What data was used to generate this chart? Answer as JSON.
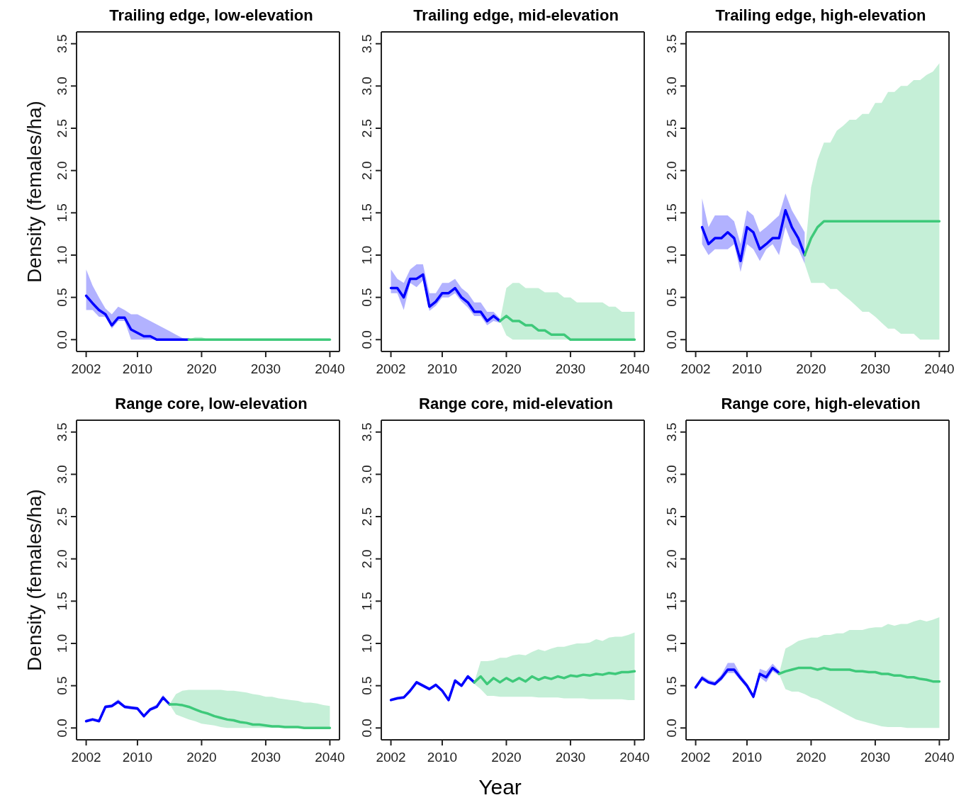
{
  "chart_data": [
    {
      "type": "line",
      "title": "Trailing edge, low-elevation",
      "ylabel": "Density (females/ha)",
      "xlim": [
        2000.5,
        2041.5
      ],
      "xticks": [
        2002,
        2010,
        2020,
        2030,
        2040
      ],
      "ylim": [
        -0.14,
        3.64
      ],
      "yticks": [
        {
          "value": 0,
          "label": "0.0"
        },
        0.5,
        {
          "value": 1,
          "label": "1.0"
        },
        1.5,
        {
          "value": 2,
          "label": "2.0"
        },
        2.5,
        {
          "value": 3,
          "label": "3.0"
        },
        3.5
      ],
      "series": [
        {
          "color": "#0000ff",
          "x": [
            2002,
            2003,
            2004,
            2005,
            2006,
            2007,
            2008,
            2009,
            2010,
            2011,
            2012,
            2013,
            2014,
            2015,
            2016,
            2017,
            2018
          ],
          "values": [
            0.52,
            0.43,
            0.35,
            0.3,
            0.17,
            0.26,
            0.26,
            0.12,
            0.08,
            0.04,
            0.04,
            0,
            0,
            0,
            0,
            0,
            0
          ],
          "lower": [
            0.35,
            0.35,
            0.27,
            0.27,
            0.13,
            0.22,
            0.22,
            0,
            0,
            0,
            0,
            0,
            0,
            0,
            0,
            0,
            0
          ],
          "upper": [
            0.83,
            0.64,
            0.5,
            0.37,
            0.3,
            0.39,
            0.35,
            0.3,
            0.3,
            0.26,
            0.22,
            0.18,
            0.14,
            0.1,
            0.06,
            0.02,
            0
          ]
        },
        {
          "color": "#3ec97a",
          "x": [
            2018,
            2019,
            2020,
            2021,
            2022,
            2023,
            2024,
            2025,
            2026,
            2027,
            2028,
            2029,
            2030,
            2031,
            2032,
            2033,
            2034,
            2035,
            2036,
            2037,
            2038,
            2039,
            2040
          ],
          "values": [
            0,
            0,
            0,
            0,
            0,
            0,
            0,
            0,
            0,
            0,
            0,
            0,
            0,
            0,
            0,
            0,
            0,
            0,
            0,
            0,
            0,
            0,
            0
          ],
          "lower": [
            0,
            0,
            0,
            0,
            0,
            0,
            0,
            0,
            0,
            0,
            0,
            0,
            0,
            0,
            0,
            0,
            0,
            0,
            0,
            0,
            0,
            0,
            0
          ],
          "upper": [
            0,
            0.03,
            0.03,
            0,
            0,
            0,
            0,
            0,
            0,
            0,
            0,
            0,
            0,
            0,
            0,
            0,
            0,
            0,
            0,
            0,
            0,
            0,
            0
          ]
        }
      ]
    },
    {
      "type": "line",
      "title": "Trailing edge, mid-elevation",
      "xlim": [
        2000.5,
        2041.5
      ],
      "xticks": [
        2002,
        2010,
        2020,
        2030,
        2040
      ],
      "ylim": [
        -0.14,
        3.64
      ],
      "yticks": [
        {
          "value": 0,
          "label": "0.0"
        },
        0.5,
        {
          "value": 1,
          "label": "1.0"
        },
        1.5,
        {
          "value": 2,
          "label": "2.0"
        },
        2.5,
        {
          "value": 3,
          "label": "3.0"
        },
        3.5
      ],
      "series": [
        {
          "color": "#0000ff",
          "x": [
            2002,
            2003,
            2004,
            2005,
            2006,
            2007,
            2008,
            2009,
            2010,
            2011,
            2012,
            2013,
            2014,
            2015,
            2016,
            2017,
            2018,
            2019
          ],
          "values": [
            0.61,
            0.61,
            0.5,
            0.72,
            0.72,
            0.77,
            0.39,
            0.45,
            0.55,
            0.55,
            0.61,
            0.5,
            0.44,
            0.33,
            0.33,
            0.22,
            0.28,
            0.22
          ],
          "lower": [
            0.55,
            0.55,
            0.35,
            0.67,
            0.62,
            0.7,
            0.34,
            0.4,
            0.5,
            0.5,
            0.55,
            0.45,
            0.38,
            0.28,
            0.28,
            0.17,
            0.22,
            0.2
          ],
          "upper": [
            0.83,
            0.72,
            0.67,
            0.83,
            0.89,
            0.89,
            0.55,
            0.55,
            0.67,
            0.67,
            0.72,
            0.61,
            0.55,
            0.44,
            0.44,
            0.33,
            0.33,
            0.25
          ]
        },
        {
          "color": "#3ec97a",
          "x": [
            2019,
            2020,
            2021,
            2022,
            2023,
            2024,
            2025,
            2026,
            2027,
            2028,
            2029,
            2030,
            2031,
            2032,
            2033,
            2034,
            2035,
            2036,
            2037,
            2038,
            2039,
            2040
          ],
          "values": [
            0.22,
            0.28,
            0.22,
            0.22,
            0.17,
            0.17,
            0.11,
            0.11,
            0.06,
            0.06,
            0.06,
            0,
            0,
            0,
            0,
            0,
            0,
            0,
            0,
            0,
            0,
            0
          ],
          "lower": [
            0.22,
            0.05,
            0,
            0,
            0,
            0,
            0,
            0,
            0,
            0,
            0,
            0,
            0,
            0,
            0,
            0,
            0,
            0,
            0,
            0,
            0,
            0
          ],
          "upper": [
            0.22,
            0.61,
            0.67,
            0.67,
            0.61,
            0.61,
            0.61,
            0.56,
            0.56,
            0.56,
            0.5,
            0.5,
            0.44,
            0.44,
            0.44,
            0.44,
            0.44,
            0.39,
            0.39,
            0.33,
            0.33,
            0.33
          ]
        }
      ]
    },
    {
      "type": "line",
      "title": "Trailing edge, high-elevation",
      "xlim": [
        2000.5,
        2041.5
      ],
      "xticks": [
        2002,
        2010,
        2020,
        2030,
        2040
      ],
      "ylim": [
        -0.14,
        3.64
      ],
      "yticks": [
        {
          "value": 0,
          "label": "0.0"
        },
        0.5,
        {
          "value": 1,
          "label": "1.0"
        },
        1.5,
        {
          "value": 2,
          "label": "2.0"
        },
        2.5,
        {
          "value": 3,
          "label": "3.0"
        },
        3.5
      ],
      "series": [
        {
          "color": "#0000ff",
          "x": [
            2003,
            2004,
            2005,
            2006,
            2007,
            2008,
            2009,
            2010,
            2011,
            2012,
            2013,
            2014,
            2015,
            2016,
            2017,
            2018,
            2019
          ],
          "values": [
            1.33,
            1.13,
            1.2,
            1.2,
            1.27,
            1.2,
            0.93,
            1.33,
            1.27,
            1.07,
            1.13,
            1.2,
            1.2,
            1.53,
            1.33,
            1.2,
            1
          ],
          "lower": [
            1.13,
            1,
            1.07,
            1.07,
            1.07,
            1.13,
            0.8,
            1.13,
            1.07,
            0.93,
            1.07,
            1.13,
            1,
            1.33,
            1.13,
            1.07,
            0.9
          ],
          "upper": [
            1.67,
            1.33,
            1.47,
            1.47,
            1.47,
            1.4,
            1.13,
            1.53,
            1.47,
            1.27,
            1.33,
            1.4,
            1.47,
            1.73,
            1.53,
            1.4,
            1.27
          ]
        },
        {
          "color": "#3ec97a",
          "x": [
            2019,
            2020,
            2021,
            2022,
            2023,
            2024,
            2025,
            2026,
            2027,
            2028,
            2029,
            2030,
            2031,
            2032,
            2033,
            2034,
            2035,
            2036,
            2037,
            2038,
            2039,
            2040
          ],
          "values": [
            1,
            1.2,
            1.33,
            1.4,
            1.4,
            1.4,
            1.4,
            1.4,
            1.4,
            1.4,
            1.4,
            1.4,
            1.4,
            1.4,
            1.4,
            1.4,
            1.4,
            1.4,
            1.4,
            1.4,
            1.4,
            1.4
          ],
          "lower": [
            0.9,
            0.67,
            0.67,
            0.67,
            0.6,
            0.6,
            0.53,
            0.47,
            0.4,
            0.33,
            0.33,
            0.27,
            0.2,
            0.13,
            0.13,
            0.07,
            0.07,
            0.07,
            0,
            0,
            0,
            0
          ],
          "upper": [
            1,
            1.8,
            2.13,
            2.33,
            2.33,
            2.47,
            2.53,
            2.6,
            2.6,
            2.67,
            2.67,
            2.8,
            2.8,
            2.93,
            2.93,
            3,
            3,
            3.07,
            3.07,
            3.13,
            3.17,
            3.27
          ]
        }
      ]
    },
    {
      "type": "line",
      "title": "Range core, low-elevation",
      "ylabel": "Density (females/ha)",
      "xlim": [
        2000.5,
        2041.5
      ],
      "xticks": [
        2002,
        2010,
        2020,
        2030,
        2040
      ],
      "ylim": [
        -0.14,
        3.64
      ],
      "yticks": [
        {
          "value": 0,
          "label": "0.0"
        },
        0.5,
        {
          "value": 1,
          "label": "1.0"
        },
        1.5,
        {
          "value": 2,
          "label": "2.0"
        },
        2.5,
        {
          "value": 3,
          "label": "3.0"
        },
        3.5
      ],
      "series": [
        {
          "color": "#0000ff",
          "x": [
            2002,
            2003,
            2004,
            2005,
            2006,
            2007,
            2008,
            2009,
            2010,
            2011,
            2012,
            2013,
            2014,
            2015
          ],
          "values": [
            0.08,
            0.1,
            0.08,
            0.25,
            0.26,
            0.31,
            0.25,
            0.24,
            0.23,
            0.14,
            0.22,
            0.25,
            0.36,
            0.28
          ],
          "lower": [
            0.07,
            0.09,
            0.07,
            0.23,
            0.24,
            0.29,
            0.23,
            0.22,
            0.21,
            0.12,
            0.2,
            0.23,
            0.33,
            0.27
          ],
          "upper": [
            0.1,
            0.12,
            0.1,
            0.27,
            0.28,
            0.34,
            0.27,
            0.26,
            0.25,
            0.16,
            0.24,
            0.28,
            0.39,
            0.29
          ]
        },
        {
          "color": "#3ec97a",
          "x": [
            2015,
            2016,
            2017,
            2018,
            2019,
            2020,
            2021,
            2022,
            2023,
            2024,
            2025,
            2026,
            2027,
            2028,
            2029,
            2030,
            2031,
            2032,
            2033,
            2034,
            2035,
            2036,
            2037,
            2038,
            2039,
            2040
          ],
          "values": [
            0.28,
            0.28,
            0.27,
            0.25,
            0.22,
            0.19,
            0.17,
            0.14,
            0.12,
            0.1,
            0.09,
            0.07,
            0.06,
            0.04,
            0.04,
            0.03,
            0.02,
            0.02,
            0.01,
            0.01,
            0.01,
            0,
            0,
            0,
            0,
            0
          ],
          "lower": [
            0.28,
            0.16,
            0.13,
            0.1,
            0.08,
            0.05,
            0.04,
            0.03,
            0.01,
            0,
            0,
            0,
            0,
            0,
            0,
            0,
            0,
            0,
            0,
            0,
            0,
            0,
            0,
            0,
            0,
            0
          ],
          "upper": [
            0.28,
            0.4,
            0.44,
            0.45,
            0.45,
            0.45,
            0.45,
            0.45,
            0.45,
            0.44,
            0.44,
            0.43,
            0.42,
            0.4,
            0.39,
            0.37,
            0.37,
            0.35,
            0.34,
            0.33,
            0.32,
            0.3,
            0.3,
            0.29,
            0.27,
            0.26
          ]
        }
      ]
    },
    {
      "type": "line",
      "title": "Range core, mid-elevation",
      "xlabel": "Year",
      "xlim": [
        2000.5,
        2041.5
      ],
      "xticks": [
        2002,
        2010,
        2020,
        2030,
        2040
      ],
      "ylim": [
        -0.14,
        3.64
      ],
      "yticks": [
        {
          "value": 0,
          "label": "0.0"
        },
        0.5,
        {
          "value": 1,
          "label": "1.0"
        },
        1.5,
        {
          "value": 2,
          "label": "2.0"
        },
        2.5,
        {
          "value": 3,
          "label": "3.0"
        },
        3.5
      ],
      "series": [
        {
          "color": "#0000ff",
          "x": [
            2002,
            2003,
            2004,
            2005,
            2006,
            2007,
            2008,
            2009,
            2010,
            2011,
            2012,
            2013,
            2014,
            2015
          ],
          "values": [
            0.33,
            0.35,
            0.36,
            0.44,
            0.54,
            0.5,
            0.46,
            0.51,
            0.44,
            0.33,
            0.56,
            0.5,
            0.61,
            0.54
          ],
          "lower": [
            0.32,
            0.34,
            0.35,
            0.42,
            0.52,
            0.48,
            0.44,
            0.49,
            0.42,
            0.31,
            0.53,
            0.48,
            0.58,
            0.52
          ],
          "upper": [
            0.35,
            0.37,
            0.38,
            0.46,
            0.56,
            0.52,
            0.48,
            0.53,
            0.46,
            0.35,
            0.58,
            0.52,
            0.63,
            0.56
          ]
        },
        {
          "color": "#3ec97a",
          "x": [
            2015,
            2016,
            2017,
            2018,
            2019,
            2020,
            2021,
            2022,
            2023,
            2024,
            2025,
            2026,
            2027,
            2028,
            2029,
            2030,
            2031,
            2032,
            2033,
            2034,
            2035,
            2036,
            2037,
            2038,
            2039,
            2040
          ],
          "values": [
            0.54,
            0.61,
            0.52,
            0.59,
            0.54,
            0.59,
            0.55,
            0.59,
            0.55,
            0.61,
            0.57,
            0.6,
            0.58,
            0.61,
            0.59,
            0.62,
            0.61,
            0.63,
            0.62,
            0.64,
            0.63,
            0.65,
            0.64,
            0.66,
            0.66,
            0.67
          ],
          "lower": [
            0.52,
            0.46,
            0.38,
            0.38,
            0.37,
            0.37,
            0.37,
            0.37,
            0.37,
            0.37,
            0.36,
            0.36,
            0.36,
            0.36,
            0.35,
            0.35,
            0.35,
            0.35,
            0.34,
            0.34,
            0.34,
            0.34,
            0.34,
            0.34,
            0.33,
            0.33
          ],
          "upper": [
            0.54,
            0.79,
            0.79,
            0.8,
            0.83,
            0.83,
            0.86,
            0.87,
            0.86,
            0.9,
            0.93,
            0.91,
            0.94,
            0.96,
            0.96,
            0.98,
            1,
            1,
            1.01,
            1.05,
            1.03,
            1.07,
            1.08,
            1.08,
            1.1,
            1.13
          ]
        }
      ]
    },
    {
      "type": "line",
      "title": "Range core, high-elevation",
      "xlim": [
        2000.5,
        2041.5
      ],
      "xticks": [
        2002,
        2010,
        2020,
        2030,
        2040
      ],
      "ylim": [
        -0.14,
        3.64
      ],
      "yticks": [
        {
          "value": 0,
          "label": "0.0"
        },
        0.5,
        {
          "value": 1,
          "label": "1.0"
        },
        1.5,
        {
          "value": 2,
          "label": "2.0"
        },
        2.5,
        {
          "value": 3,
          "label": "3.0"
        },
        3.5
      ],
      "series": [
        {
          "color": "#0000ff",
          "x": [
            2002,
            2003,
            2004,
            2005,
            2006,
            2007,
            2008,
            2009,
            2010,
            2011,
            2012,
            2013,
            2014,
            2015
          ],
          "values": [
            0.48,
            0.59,
            0.54,
            0.52,
            0.59,
            0.69,
            0.69,
            0.59,
            0.5,
            0.37,
            0.64,
            0.6,
            0.71,
            0.65
          ],
          "lower": [
            0.46,
            0.56,
            0.52,
            0.5,
            0.56,
            0.65,
            0.65,
            0.56,
            0.47,
            0.34,
            0.6,
            0.54,
            0.67,
            0.62
          ],
          "upper": [
            0.5,
            0.62,
            0.57,
            0.55,
            0.63,
            0.77,
            0.77,
            0.63,
            0.53,
            0.4,
            0.7,
            0.67,
            0.76,
            0.68
          ]
        },
        {
          "color": "#3ec97a",
          "x": [
            2015,
            2016,
            2017,
            2018,
            2019,
            2020,
            2021,
            2022,
            2023,
            2024,
            2025,
            2026,
            2027,
            2028,
            2029,
            2030,
            2031,
            2032,
            2033,
            2034,
            2035,
            2036,
            2037,
            2038,
            2039,
            2040
          ],
          "values": [
            0.64,
            0.67,
            0.69,
            0.71,
            0.71,
            0.71,
            0.69,
            0.71,
            0.69,
            0.69,
            0.69,
            0.69,
            0.67,
            0.67,
            0.66,
            0.66,
            0.64,
            0.64,
            0.62,
            0.62,
            0.6,
            0.6,
            0.58,
            0.57,
            0.55,
            0.55
          ],
          "lower": [
            0.64,
            0.46,
            0.43,
            0.43,
            0.4,
            0.36,
            0.34,
            0.3,
            0.26,
            0.22,
            0.18,
            0.14,
            0.1,
            0.08,
            0.06,
            0.04,
            0.02,
            0.01,
            0.01,
            0.01,
            0,
            0,
            0,
            0,
            0,
            0
          ],
          "upper": [
            0.64,
            0.94,
            0.98,
            1.03,
            1.05,
            1.07,
            1.07,
            1.1,
            1.1,
            1.12,
            1.12,
            1.16,
            1.16,
            1.16,
            1.18,
            1.19,
            1.19,
            1.23,
            1.21,
            1.23,
            1.23,
            1.26,
            1.28,
            1.26,
            1.28,
            1.31
          ]
        }
      ]
    }
  ]
}
